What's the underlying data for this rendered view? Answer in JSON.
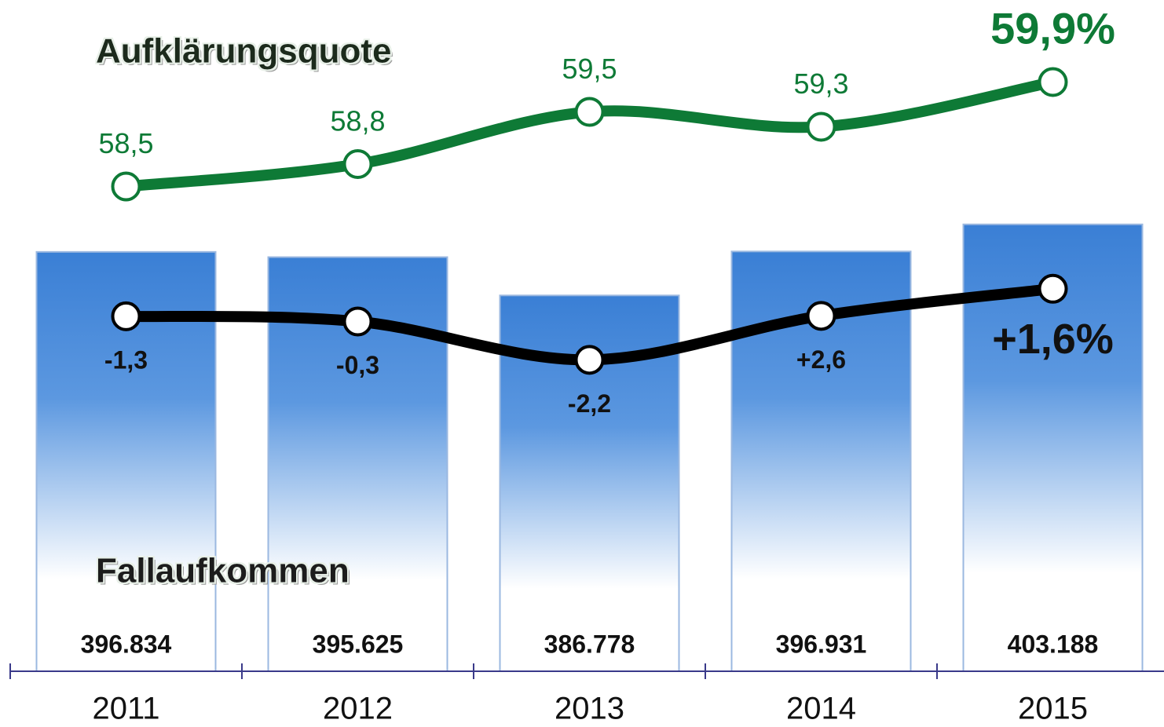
{
  "chart_data": [
    {
      "type": "bar",
      "title": "Fallaufkommen",
      "categories": [
        "2011",
        "2012",
        "2013",
        "2014",
        "2015"
      ],
      "values": [
        396834,
        395625,
        386778,
        396931,
        403188
      ],
      "value_labels": [
        "396.834",
        "395.625",
        "386.778",
        "396.931",
        "403.188"
      ],
      "changes": [
        "-1,3",
        "-0,3",
        "-2,2",
        "+2,6",
        "+1,6%"
      ],
      "color": "#3a7fd5",
      "ylim": [
        300000,
        455000
      ]
    },
    {
      "type": "line",
      "title": "Aufklärungsquote",
      "values": [
        58.5,
        58.8,
        59.5,
        59.3,
        59.9
      ],
      "value_labels": [
        "58,5",
        "58,8",
        "59,5",
        "59,3",
        "59,9%"
      ],
      "color": "#0e7a36",
      "ylim": [
        52,
        61
      ]
    }
  ]
}
